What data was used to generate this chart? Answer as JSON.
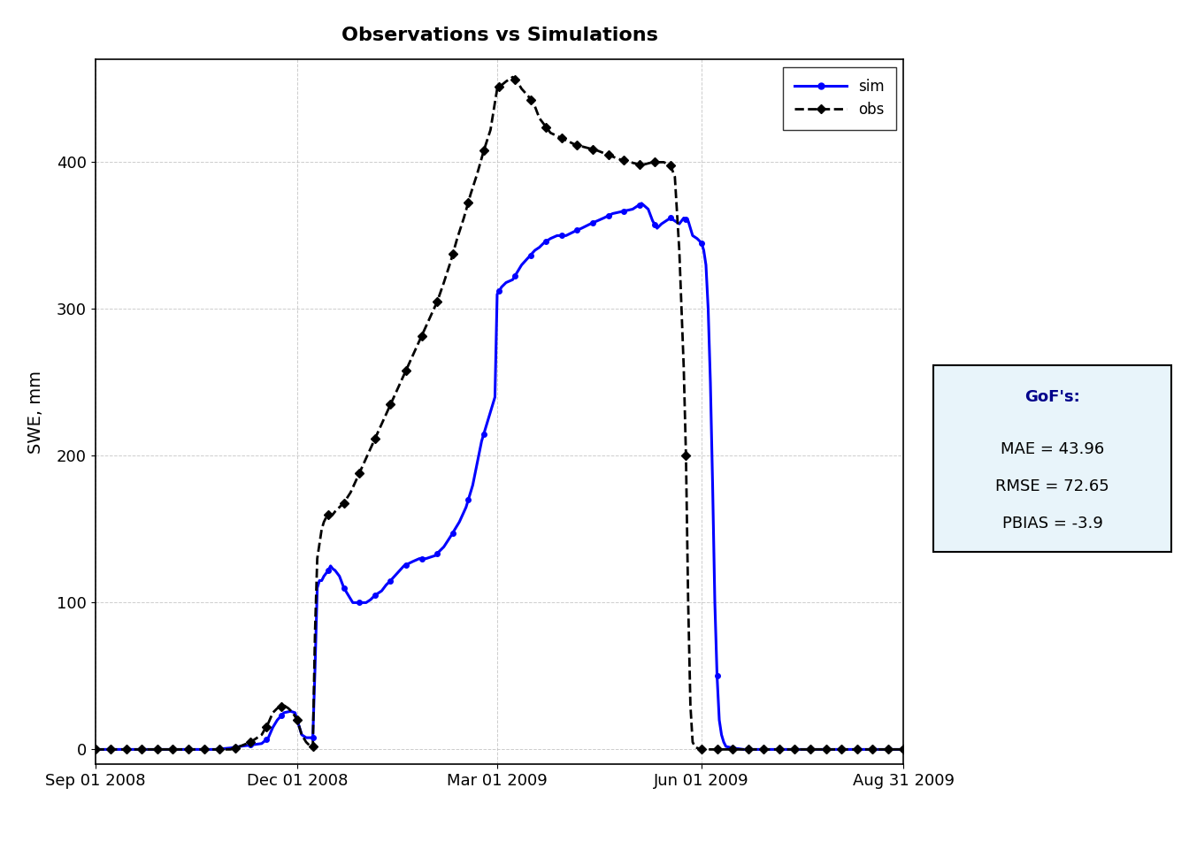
{
  "title": "Observations vs Simulations",
  "ylabel": "SWE, mm",
  "xlim_start": "2008-09-01",
  "xlim_end": "2009-08-31",
  "ylim": [
    -10,
    470
  ],
  "yticks": [
    0,
    100,
    200,
    300,
    400
  ],
  "xtick_labels": [
    "Sep 01 2008",
    "Dec 01 2008",
    "Mar 01 2009",
    "Jun 01 2009",
    "Aug 31 2009"
  ],
  "xtick_dates": [
    "2008-09-01",
    "2008-12-01",
    "2009-03-01",
    "2009-06-01",
    "2009-08-31"
  ],
  "sim_color": "#0000FF",
  "obs_color": "#000000",
  "background_color": "#FFFFFF",
  "plot_bg_color": "#FFFFFF",
  "grid_color": "#C0C0C0",
  "gof_box_bg": "#E8F4FA",
  "gof_box_edge": "#000000",
  "gof_title_color": "#00008B",
  "gof_text_color": "#000000",
  "gof_title": "GoF's:",
  "gof_mae": "MAE = 43.96",
  "gof_rmse": "RMSE = 72.65",
  "gof_pbias": "PBIAS = -3.9",
  "legend_sim": "sim",
  "legend_obs": "obs"
}
